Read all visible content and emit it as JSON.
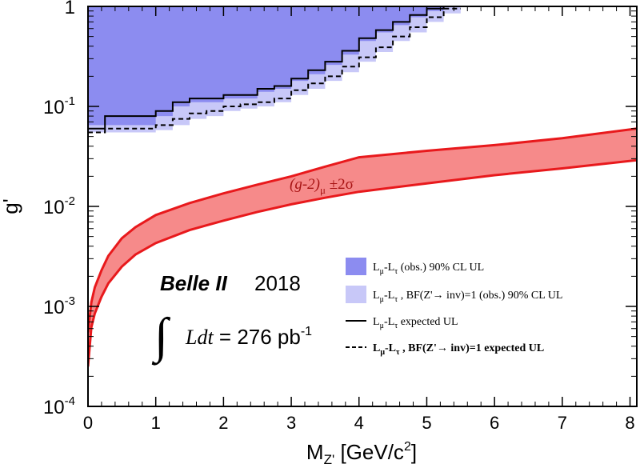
{
  "chart_data": {
    "type": "area",
    "xlabel_main": "M",
    "xlabel_sub": "Z'",
    "xlabel_rest": " [GeV/c",
    "xlabel_sup": "2",
    "xlabel_end": "]",
    "ylabel": "g'",
    "xlim": [
      0,
      8.1
    ],
    "ylim": [
      0.0001,
      1
    ],
    "yscale": "log",
    "x_ticks": [
      "0",
      "1",
      "2",
      "3",
      "4",
      "5",
      "6",
      "7",
      "8"
    ],
    "y_ticks": [
      {
        "base": "10",
        "exp": "-4"
      },
      {
        "base": "10",
        "exp": "-3"
      },
      {
        "base": "10",
        "exp": "-2"
      },
      {
        "base": "10",
        "exp": "-1"
      },
      {
        "base": "1",
        "exp": ""
      }
    ],
    "g2_band": {
      "label_main": "(g-2)",
      "label_sub": "μ",
      "label_rest": " ±2σ",
      "color": "#f68a8a",
      "edge_color": "#e8191c",
      "x": [
        0.0,
        0.05,
        0.1,
        0.2,
        0.3,
        0.5,
        0.7,
        1.0,
        1.5,
        2.0,
        2.5,
        3.0,
        3.5,
        4.0,
        5.0,
        6.0,
        7.0,
        8.1
      ],
      "lower": [
        0.00025,
        0.00062,
        0.00085,
        0.00125,
        0.0017,
        0.0025,
        0.0033,
        0.0043,
        0.0058,
        0.0072,
        0.0088,
        0.0105,
        0.0122,
        0.014,
        0.017,
        0.0205,
        0.024,
        0.029
      ],
      "upper": [
        0.00055,
        0.0011,
        0.00155,
        0.0023,
        0.0032,
        0.0048,
        0.0062,
        0.0082,
        0.0108,
        0.0135,
        0.0165,
        0.02,
        0.025,
        0.031,
        0.036,
        0.041,
        0.048,
        0.06
      ]
    },
    "ul_band": {
      "edges": [
        0.0,
        0.25,
        0.5,
        0.75,
        1.0,
        1.25,
        1.5,
        1.75,
        2.0,
        2.25,
        2.5,
        2.75,
        3.0,
        3.25,
        3.5,
        3.75,
        4.0,
        4.25,
        4.5,
        4.75,
        5.0,
        5.25,
        5.5
      ],
      "obs": [
        0.065,
        0.065,
        0.065,
        0.065,
        0.08,
        0.1,
        0.11,
        0.11,
        0.12,
        0.12,
        0.14,
        0.15,
        0.18,
        0.21,
        0.26,
        0.33,
        0.45,
        0.55,
        0.65,
        0.78,
        0.9,
        1.0
      ],
      "obs_bf": [
        0.055,
        0.055,
        0.055,
        0.055,
        0.058,
        0.065,
        0.075,
        0.08,
        0.09,
        0.095,
        0.1,
        0.11,
        0.13,
        0.15,
        0.18,
        0.22,
        0.28,
        0.35,
        0.45,
        0.55,
        0.7,
        0.85
      ],
      "expected": [
        0.06,
        0.08,
        0.08,
        0.08,
        0.09,
        0.11,
        0.12,
        0.12,
        0.13,
        0.13,
        0.15,
        0.16,
        0.19,
        0.23,
        0.28,
        0.36,
        0.48,
        0.58,
        0.7,
        0.82,
        0.95,
        1.0
      ],
      "expected_bf": [
        0.055,
        0.06,
        0.06,
        0.06,
        0.065,
        0.075,
        0.085,
        0.09,
        0.1,
        0.105,
        0.11,
        0.12,
        0.145,
        0.17,
        0.2,
        0.25,
        0.31,
        0.39,
        0.5,
        0.62,
        0.78,
        0.95
      ],
      "obs_color": "#8c8cf0",
      "bf_color": "#c8c8f8"
    },
    "annotation": {
      "experiment": "Belle II",
      "year": "2018",
      "integral": "Ldt",
      "equals": " = 276 pb",
      "lumi_sup": "-1"
    },
    "legend": {
      "placement": "bottom-right",
      "items": [
        {
          "style": "obs-box",
          "prefix": "L",
          "sub1": "μ",
          "mid": "-L",
          "sub2": "τ",
          "text": " (obs.) 90% CL UL"
        },
        {
          "style": "bf-box",
          "prefix": "L",
          "sub1": "μ",
          "mid": "-L",
          "sub2": "τ",
          "text": " , BF(Z'→ inv)=1 (obs.) 90% CL UL"
        },
        {
          "style": "solid",
          "prefix": "L",
          "sub1": "μ",
          "mid": "-L",
          "sub2": "τ",
          "text": " expected UL"
        },
        {
          "style": "dashed",
          "prefix": "L",
          "sub1": "μ",
          "mid": "-L",
          "sub2": "τ",
          "text": " , BF(Z'→ inv)=1 expected UL"
        }
      ]
    }
  }
}
